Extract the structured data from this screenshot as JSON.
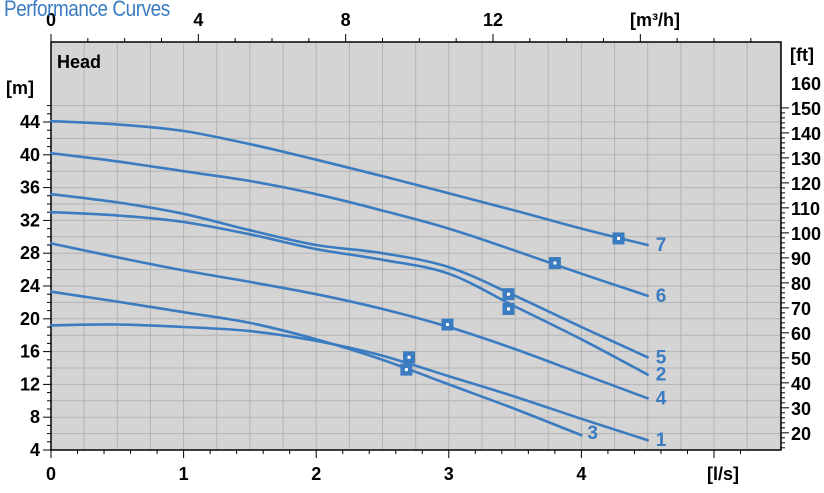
{
  "chart_data": {
    "type": "line",
    "title": "Performance Curves",
    "plot_label": "Head",
    "colors": {
      "series": "#3b7cc1",
      "plot_bg": "#d4d4d4",
      "grid": "#b3b3b3",
      "axis": "#000000"
    },
    "bottom_axis": {
      "unit_label": "[l/s]",
      "range": [
        0,
        4.5
      ],
      "ticks": [
        "0",
        "1",
        "2",
        "3",
        "4"
      ]
    },
    "top_axis": {
      "unit_label": "[m³/h]",
      "range": [
        0,
        16.2
      ],
      "ticks": [
        "0",
        "4",
        "8",
        "12"
      ]
    },
    "left_axis": {
      "unit_label": "[m]",
      "range": [
        4,
        46
      ],
      "ticks": [
        "4",
        "8",
        "12",
        "16",
        "20",
        "24",
        "28",
        "32",
        "36",
        "40",
        "44"
      ]
    },
    "right_axis": {
      "unit_label": "[ft]",
      "ticks": [
        "20",
        "30",
        "40",
        "50",
        "60",
        "70",
        "80",
        "90",
        "100",
        "110",
        "120",
        "130",
        "140",
        "150",
        "160"
      ]
    },
    "grid": true,
    "series": [
      {
        "label": "1",
        "x": [
          0,
          0.5,
          1,
          1.5,
          2,
          2.5,
          3,
          3.5,
          4,
          4.5
        ],
        "y": [
          19.2,
          19.3,
          19,
          18.5,
          17.3,
          15.5,
          13,
          10.5,
          7.8,
          5.2
        ],
        "marker": [
          2.7,
          15.3
        ]
      },
      {
        "label": "2",
        "x": [
          0,
          0.5,
          1,
          1.5,
          2,
          2.5,
          3,
          3.5,
          4,
          4.5
        ],
        "y": [
          33,
          32.6,
          31.8,
          30.3,
          28.5,
          27.2,
          25.5,
          21.5,
          17.5,
          13.2
        ],
        "marker": [
          3.45,
          21.2
        ]
      },
      {
        "label": "3",
        "x": [
          0,
          0.5,
          1,
          1.5,
          2,
          2.5,
          3,
          3.5,
          4
        ],
        "y": [
          23.3,
          22.1,
          20.8,
          19.5,
          17.5,
          15,
          12,
          9,
          5.8
        ],
        "marker": [
          2.68,
          13.8
        ]
      },
      {
        "label": "4",
        "x": [
          0,
          0.5,
          1,
          1.5,
          2,
          2.5,
          3,
          3.5,
          4,
          4.5
        ],
        "y": [
          29.2,
          27.5,
          25.9,
          24.5,
          23,
          21.2,
          19,
          16.3,
          13.3,
          10.3
        ],
        "marker": [
          2.99,
          19.3
        ]
      },
      {
        "label": "5",
        "x": [
          0,
          0.5,
          1,
          1.5,
          2,
          2.5,
          3,
          3.5,
          4,
          4.5
        ],
        "y": [
          35.2,
          34.2,
          32.8,
          30.8,
          29,
          28,
          26.3,
          22.8,
          19,
          15.3
        ],
        "marker": [
          3.45,
          23
        ]
      },
      {
        "label": "6",
        "x": [
          0,
          0.5,
          1,
          1.5,
          2,
          2.5,
          3,
          3.5,
          4,
          4.5
        ],
        "y": [
          40.2,
          39.2,
          38,
          36.8,
          35.2,
          33.2,
          31,
          28.3,
          25.5,
          22.8
        ],
        "marker": [
          3.8,
          26.8
        ]
      },
      {
        "label": "7",
        "x": [
          0,
          0.5,
          1,
          1.5,
          2,
          2.5,
          3,
          3.5,
          4,
          4.5
        ],
        "y": [
          44.1,
          43.7,
          42.9,
          41.3,
          39.4,
          37.4,
          35.3,
          33.2,
          31,
          29
        ],
        "marker": [
          4.28,
          29.8
        ]
      }
    ]
  }
}
